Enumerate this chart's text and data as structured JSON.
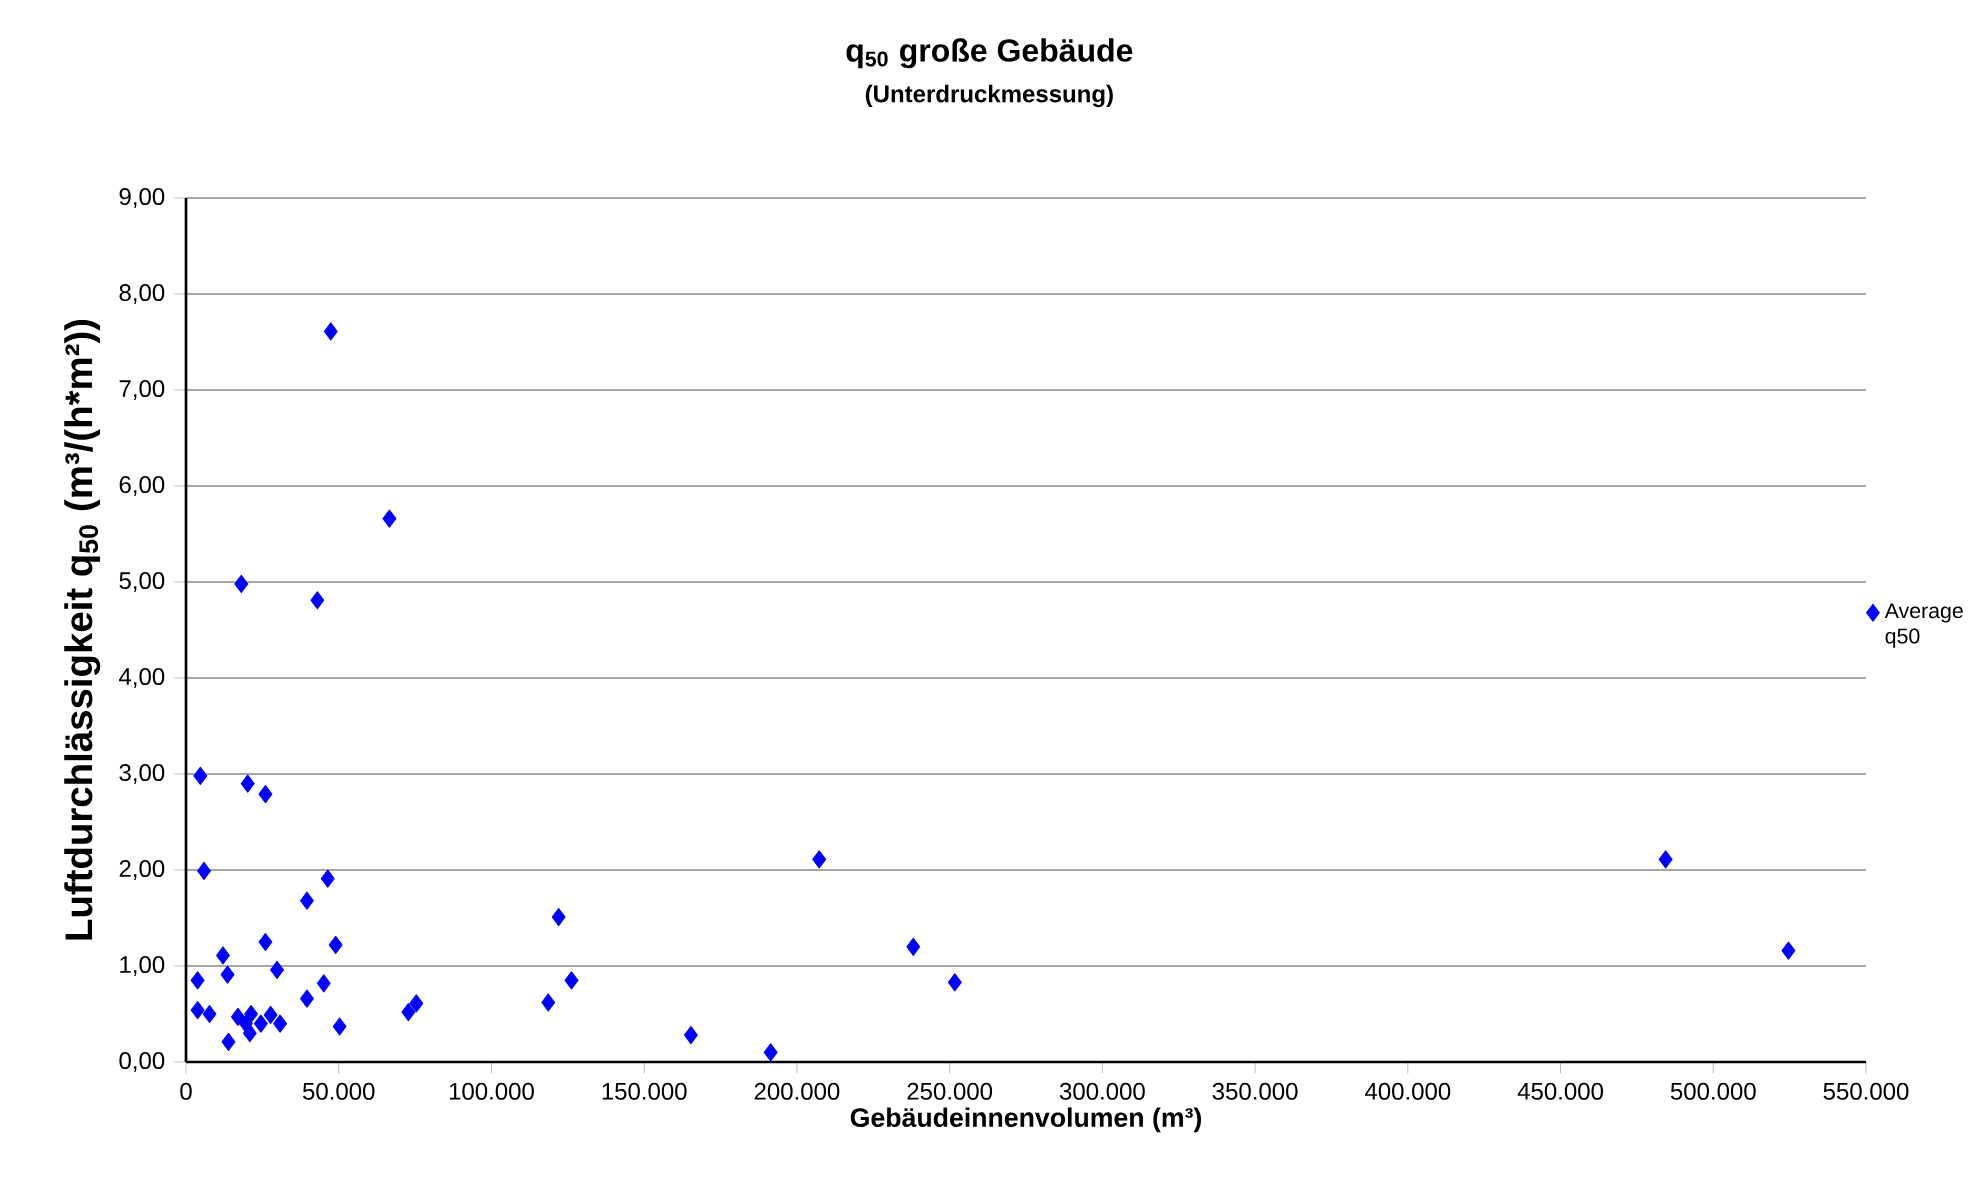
{
  "chart_data": {
    "type": "scatter",
    "title": "q$_{50}$ große Gebäude",
    "subtitle": "(Unterdruckmessung)",
    "xlabel": "Gebäudeinnenvolumen (m³)",
    "ylabel": "Luftdurchlässigkeit q$_{50}$ (m³/(h*m²))",
    "xlim": [
      0,
      550000
    ],
    "ylim": [
      0,
      9
    ],
    "xticks": [
      {
        "value": 0,
        "label": "0"
      },
      {
        "value": 50000,
        "label": "50.000"
      },
      {
        "value": 100000,
        "label": "100.000"
      },
      {
        "value": 150000,
        "label": "150.000"
      },
      {
        "value": 200000,
        "label": "200.000"
      },
      {
        "value": 250000,
        "label": "250.000"
      },
      {
        "value": 300000,
        "label": "300.000"
      },
      {
        "value": 350000,
        "label": "350.000"
      },
      {
        "value": 400000,
        "label": "400.000"
      },
      {
        "value": 450000,
        "label": "450.000"
      },
      {
        "value": 500000,
        "label": "500.000"
      },
      {
        "value": 550000,
        "label": "550.000"
      }
    ],
    "yticks": [
      {
        "value": 0,
        "label": "0,00"
      },
      {
        "value": 1,
        "label": "1,00"
      },
      {
        "value": 2,
        "label": "2,00"
      },
      {
        "value": 3,
        "label": "3,00"
      },
      {
        "value": 4,
        "label": "4,00"
      },
      {
        "value": 5,
        "label": "5,00"
      },
      {
        "value": 6,
        "label": "6,00"
      },
      {
        "value": 7,
        "label": "7,00"
      },
      {
        "value": 8,
        "label": "8,00"
      },
      {
        "value": 9,
        "label": "9,00"
      }
    ],
    "grid": "y",
    "legend": "right",
    "marker": "diamond",
    "series": [
      {
        "name": "Average q50",
        "color": "#0000ff",
        "x": [
          4700,
          20200,
          26000,
          5900,
          46400,
          39600,
          122000,
          26000,
          49000,
          12100,
          29800,
          3800,
          13600,
          45100,
          126200,
          39600,
          3800,
          7700,
          17000,
          21300,
          27700,
          19600,
          24500,
          30800,
          20900,
          13900,
          50300,
          72800,
          75400,
          118600,
          47400,
          18100,
          43000,
          66600,
          165300,
          191400,
          207300,
          238100,
          251700,
          484400,
          524600
        ],
        "values": [
          2.98,
          2.9,
          2.79,
          1.99,
          1.91,
          1.68,
          1.51,
          1.25,
          1.22,
          1.11,
          0.96,
          0.85,
          0.91,
          0.82,
          0.85,
          0.66,
          0.54,
          0.5,
          0.47,
          0.5,
          0.49,
          0.4,
          0.4,
          0.4,
          0.3,
          0.21,
          0.37,
          0.52,
          0.61,
          0.62,
          7.61,
          4.98,
          4.81,
          5.66,
          0.28,
          0.1,
          2.11,
          1.2,
          0.83,
          2.11,
          1.16
        ]
      }
    ]
  }
}
